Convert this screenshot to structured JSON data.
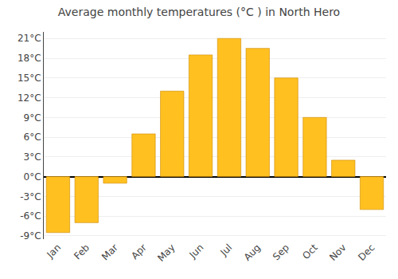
{
  "chart_data": {
    "type": "bar",
    "title": "Average monthly temperatures (°C ) in North Hero",
    "categories": [
      "Jan",
      "Feb",
      "Mar",
      "Apr",
      "May",
      "Jun",
      "Jul",
      "Aug",
      "Sep",
      "Oct",
      "Nov",
      "Dec"
    ],
    "values": [
      -8.5,
      -7.0,
      -1.0,
      6.5,
      13.0,
      18.5,
      21.0,
      19.5,
      15.0,
      9.0,
      2.5,
      -5.0
    ],
    "color": "#FFC020",
    "ylim": [
      -9.5,
      22.0
    ],
    "yticks": [
      {
        "value": -9,
        "label": "-9°C"
      },
      {
        "value": -6,
        "label": "-6°C"
      },
      {
        "value": -3,
        "label": "-3°C"
      },
      {
        "value": 0,
        "label": "0°C"
      },
      {
        "value": 3,
        "label": "3°C"
      },
      {
        "value": 6,
        "label": "6°C"
      },
      {
        "value": 9,
        "label": "9°C"
      },
      {
        "value": 12,
        "label": "12°C"
      },
      {
        "value": 15,
        "label": "15°C"
      },
      {
        "value": 18,
        "label": "18°C"
      },
      {
        "value": 21,
        "label": "21°C"
      }
    ],
    "grid": true
  }
}
